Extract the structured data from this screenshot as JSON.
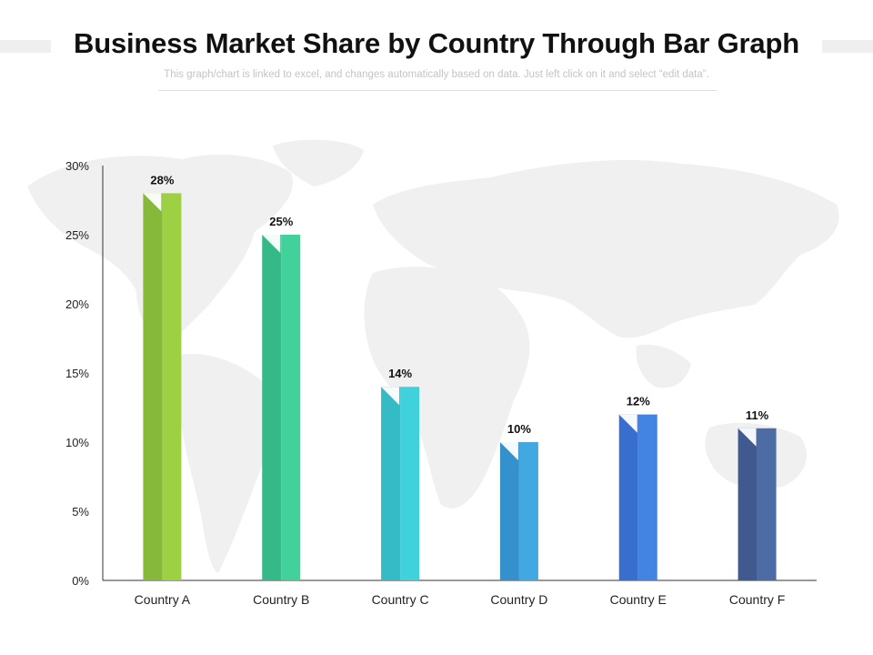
{
  "header": {
    "title": "Business Market Share by Country Through Bar Graph",
    "subtitle": "This graph/chart is linked to excel, and changes automatically based on data. Just left click on it and select “edit data”."
  },
  "chart_data": {
    "type": "bar",
    "title": "",
    "xlabel": "",
    "ylabel": "",
    "categories": [
      "Country A",
      "Country B",
      "Country C",
      "Country D",
      "Country E",
      "Country F"
    ],
    "values": [
      28,
      25,
      14,
      10,
      12,
      11
    ],
    "data_labels": [
      "28%",
      "25%",
      "14%",
      "10%",
      "12%",
      "11%"
    ],
    "ylim": [
      0,
      30
    ],
    "yticks": [
      0,
      5,
      10,
      15,
      20,
      25,
      30
    ],
    "ytick_labels": [
      "0%",
      "5%",
      "10%",
      "15%",
      "20%",
      "25%",
      "30%"
    ],
    "grid": false,
    "legend": "none",
    "colors": [
      "#9ed043",
      "#43d19b",
      "#3fd2dc",
      "#42a8e2",
      "#4384e2",
      "#4d6ca6"
    ],
    "colors_dark": [
      "#86b83a",
      "#36b988",
      "#35bbc6",
      "#3491cb",
      "#386fce",
      "#40598e"
    ],
    "background": "world-map-silhouette"
  }
}
